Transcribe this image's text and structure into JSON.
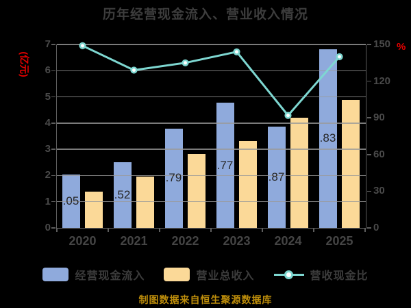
{
  "title": "历年经营现金流入、营业收入情况",
  "axes": {
    "left": {
      "unit": "(亿元)",
      "unit_color": "#E60000",
      "ticks": [
        "0",
        "1",
        "2",
        "3",
        "4",
        "5",
        "6",
        "7"
      ],
      "max": 7
    },
    "right": {
      "unit": "%",
      "unit_color": "#E60000",
      "ticks": [
        "0",
        "30",
        "60",
        "90",
        "120",
        "150"
      ],
      "max": 150
    }
  },
  "chart_data": {
    "type": "bar+line",
    "title": "历年经营现金流入、营业收入情况",
    "categories": [
      "2020",
      "2021",
      "2022",
      "2023",
      "2024",
      "2025"
    ],
    "series": [
      {
        "name": "经营现金流入",
        "type": "bar",
        "axis": "left",
        "color": "#8FAADC",
        "values": [
          2.05,
          2.52,
          3.79,
          4.77,
          3.87,
          6.83
        ],
        "visible_labels": [
          ".05",
          ".52",
          ".79",
          ".77",
          ".87",
          ".83"
        ]
      },
      {
        "name": "营业总收入",
        "type": "bar",
        "axis": "left",
        "color": "#FBD998",
        "values": [
          1.38,
          1.95,
          2.81,
          3.31,
          4.21,
          4.88
        ]
      },
      {
        "name": "营收现金比",
        "type": "line",
        "axis": "right",
        "color": "#7ED7D1",
        "marker_fill": "#FFFFFF",
        "values": [
          149,
          129,
          135,
          144,
          92,
          140
        ]
      }
    ],
    "left_ylabel": "(亿元)",
    "right_ylabel": "%",
    "left_ylim": [
      0,
      7
    ],
    "right_ylim": [
      0,
      150
    ],
    "grid": true,
    "legend_position": "bottom",
    "background": "#000000"
  },
  "footer": {
    "caption": "制图数据来自恒生聚源数据库",
    "color": "#BD8D0B"
  }
}
